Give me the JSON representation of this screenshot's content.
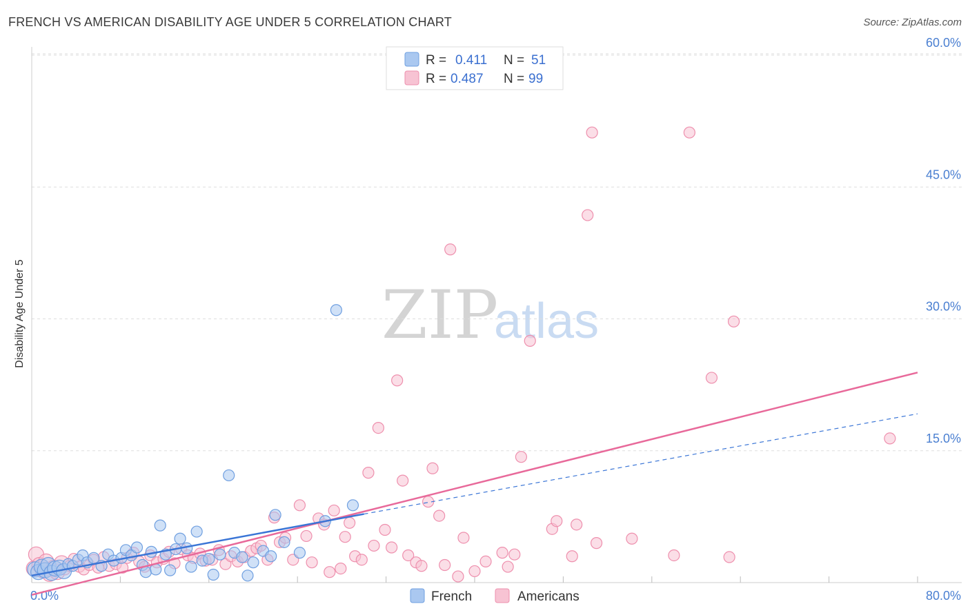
{
  "title": "FRENCH VS AMERICAN DISABILITY AGE UNDER 5 CORRELATION CHART",
  "source": "Source: ZipAtlas.com",
  "watermark": {
    "zip": "ZIP",
    "atlas": "atlas"
  },
  "colors": {
    "french_fill": "#aac8f0",
    "french_stroke": "#6f9fe0",
    "french_line": "#3a75d6",
    "americans_fill": "#f7c3d3",
    "americans_stroke": "#ee8fad",
    "americans_line": "#e8699a",
    "grid": "#dddddd",
    "tick_text": "#4a7fd1"
  },
  "legend": {
    "rows": [
      {
        "r_label": "R = ",
        "r_value": "0.411",
        "n_label": "N = ",
        "n_value": "51"
      },
      {
        "r_label": "R = ",
        "r_value": "0.487",
        "n_label": "N = ",
        "n_value": "99"
      }
    ]
  },
  "bottom_legend": [
    {
      "label": "French"
    },
    {
      "label": "Americans"
    }
  ],
  "chart_data": {
    "type": "scatter",
    "title": "FRENCH VS AMERICAN DISABILITY AGE UNDER 5 CORRELATION CHART",
    "xlabel": "",
    "ylabel": "Disability Age Under 5",
    "xlim": [
      0,
      80
    ],
    "ylim": [
      0,
      60
    ],
    "x_tick_labels": [
      "0.0%",
      "80.0%"
    ],
    "y_ticks": [
      15,
      30,
      45,
      60
    ],
    "y_tick_labels": [
      "15.0%",
      "30.0%",
      "45.0%",
      "60.0%"
    ],
    "series": [
      {
        "name": "French",
        "points": [
          [
            0.3,
            1.5
          ],
          [
            0.6,
            1.2
          ],
          [
            0.9,
            1.8
          ],
          [
            1.2,
            1.4
          ],
          [
            1.5,
            2.0
          ],
          [
            1.8,
            1.1
          ],
          [
            2.1,
            1.6
          ],
          [
            2.5,
            1.7
          ],
          [
            2.9,
            1.3
          ],
          [
            3.3,
            2.1
          ],
          [
            3.7,
            1.9
          ],
          [
            4.2,
            2.6
          ],
          [
            4.6,
            3.1
          ],
          [
            5.0,
            2.3
          ],
          [
            5.6,
            2.8
          ],
          [
            6.3,
            1.9
          ],
          [
            6.9,
            3.2
          ],
          [
            7.4,
            2.5
          ],
          [
            8.1,
            2.8
          ],
          [
            8.5,
            3.7
          ],
          [
            9.0,
            3.1
          ],
          [
            9.5,
            4.0
          ],
          [
            10.0,
            2.0
          ],
          [
            10.3,
            1.2
          ],
          [
            10.8,
            3.5
          ],
          [
            11.2,
            1.5
          ],
          [
            11.6,
            6.5
          ],
          [
            12.1,
            3.2
          ],
          [
            12.5,
            1.4
          ],
          [
            13.0,
            3.8
          ],
          [
            13.4,
            5.0
          ],
          [
            14.0,
            3.9
          ],
          [
            14.4,
            1.8
          ],
          [
            14.9,
            5.8
          ],
          [
            15.4,
            2.5
          ],
          [
            16.0,
            2.7
          ],
          [
            16.4,
            0.9
          ],
          [
            17.0,
            3.2
          ],
          [
            17.8,
            12.2
          ],
          [
            18.3,
            3.4
          ],
          [
            19.0,
            2.9
          ],
          [
            19.5,
            0.8
          ],
          [
            20.0,
            2.3
          ],
          [
            20.9,
            3.6
          ],
          [
            21.6,
            3.0
          ],
          [
            22.0,
            7.7
          ],
          [
            22.8,
            4.6
          ],
          [
            24.2,
            3.4
          ],
          [
            26.5,
            7.0
          ],
          [
            27.5,
            31.0
          ],
          [
            29.0,
            8.8
          ]
        ]
      },
      {
        "name": "Americans",
        "points": [
          [
            0.2,
            1.6
          ],
          [
            0.4,
            3.2
          ],
          [
            0.7,
            2.0
          ],
          [
            1.0,
            1.4
          ],
          [
            1.3,
            2.4
          ],
          [
            1.6,
            1.0
          ],
          [
            2.0,
            1.7
          ],
          [
            2.3,
            1.2
          ],
          [
            2.7,
            2.2
          ],
          [
            3.0,
            1.5
          ],
          [
            3.4,
            1.9
          ],
          [
            3.8,
            2.7
          ],
          [
            4.3,
            1.8
          ],
          [
            4.7,
            1.5
          ],
          [
            5.2,
            2.0
          ],
          [
            5.6,
            2.6
          ],
          [
            6.0,
            1.7
          ],
          [
            6.5,
            2.9
          ],
          [
            7.0,
            1.9
          ],
          [
            7.6,
            2.1
          ],
          [
            8.2,
            1.7
          ],
          [
            8.6,
            2.8
          ],
          [
            9.2,
            3.4
          ],
          [
            9.7,
            2.4
          ],
          [
            10.2,
            1.8
          ],
          [
            10.7,
            3.1
          ],
          [
            11.3,
            2.3
          ],
          [
            11.9,
            2.7
          ],
          [
            12.4,
            3.5
          ],
          [
            12.9,
            2.2
          ],
          [
            13.5,
            3.8
          ],
          [
            14.1,
            3.1
          ],
          [
            14.6,
            2.8
          ],
          [
            15.2,
            3.3
          ],
          [
            15.7,
            2.5
          ],
          [
            16.3,
            2.6
          ],
          [
            16.9,
            3.7
          ],
          [
            17.5,
            2.1
          ],
          [
            18.0,
            3.0
          ],
          [
            18.6,
            2.4
          ],
          [
            19.2,
            2.9
          ],
          [
            19.8,
            3.6
          ],
          [
            20.3,
            3.9
          ],
          [
            20.7,
            4.2
          ],
          [
            21.3,
            2.6
          ],
          [
            21.9,
            7.4
          ],
          [
            22.4,
            4.6
          ],
          [
            22.9,
            5.1
          ],
          [
            23.6,
            2.6
          ],
          [
            24.2,
            8.8
          ],
          [
            24.8,
            5.3
          ],
          [
            25.3,
            2.3
          ],
          [
            25.9,
            7.3
          ],
          [
            26.4,
            6.6
          ],
          [
            26.9,
            1.2
          ],
          [
            27.3,
            8.2
          ],
          [
            27.9,
            1.6
          ],
          [
            28.3,
            5.2
          ],
          [
            28.7,
            6.8
          ],
          [
            29.2,
            3.0
          ],
          [
            29.8,
            2.6
          ],
          [
            30.4,
            12.5
          ],
          [
            30.9,
            4.2
          ],
          [
            31.3,
            17.6
          ],
          [
            31.9,
            6.0
          ],
          [
            32.5,
            4.0
          ],
          [
            33.0,
            23.0
          ],
          [
            33.5,
            11.6
          ],
          [
            34.0,
            3.1
          ],
          [
            34.7,
            2.3
          ],
          [
            35.2,
            1.9
          ],
          [
            35.8,
            9.2
          ],
          [
            36.2,
            13.0
          ],
          [
            36.8,
            7.6
          ],
          [
            37.3,
            2.0
          ],
          [
            37.8,
            37.9
          ],
          [
            38.5,
            0.7
          ],
          [
            39.0,
            5.1
          ],
          [
            40.0,
            1.3
          ],
          [
            41.0,
            2.4
          ],
          [
            42.5,
            3.4
          ],
          [
            43.0,
            1.8
          ],
          [
            43.6,
            3.2
          ],
          [
            44.2,
            14.3
          ],
          [
            45.0,
            27.5
          ],
          [
            47.0,
            6.1
          ],
          [
            47.4,
            7.0
          ],
          [
            48.8,
            3.0
          ],
          [
            49.2,
            6.6
          ],
          [
            50.2,
            41.8
          ],
          [
            50.6,
            51.2
          ],
          [
            51.0,
            4.5
          ],
          [
            54.2,
            5.0
          ],
          [
            58.0,
            3.1
          ],
          [
            59.4,
            51.2
          ],
          [
            61.4,
            23.3
          ],
          [
            63.0,
            2.9
          ],
          [
            63.4,
            29.7
          ],
          [
            77.5,
            16.4
          ]
        ]
      }
    ],
    "trend_lines": [
      {
        "series": "French",
        "x": [
          0,
          30
        ],
        "y": [
          0.8,
          7.8
        ],
        "style": "solid",
        "extension": {
          "x": [
            30,
            80
          ],
          "y": [
            7.8,
            19.2
          ],
          "style": "dashed"
        }
      },
      {
        "series": "Americans",
        "x": [
          0,
          80
        ],
        "y": [
          -1.4,
          23.9
        ],
        "style": "solid"
      }
    ],
    "legend": [
      {
        "name": "French",
        "r": 0.411,
        "n": 51
      },
      {
        "name": "Americans",
        "r": 0.487,
        "n": 99
      }
    ]
  }
}
